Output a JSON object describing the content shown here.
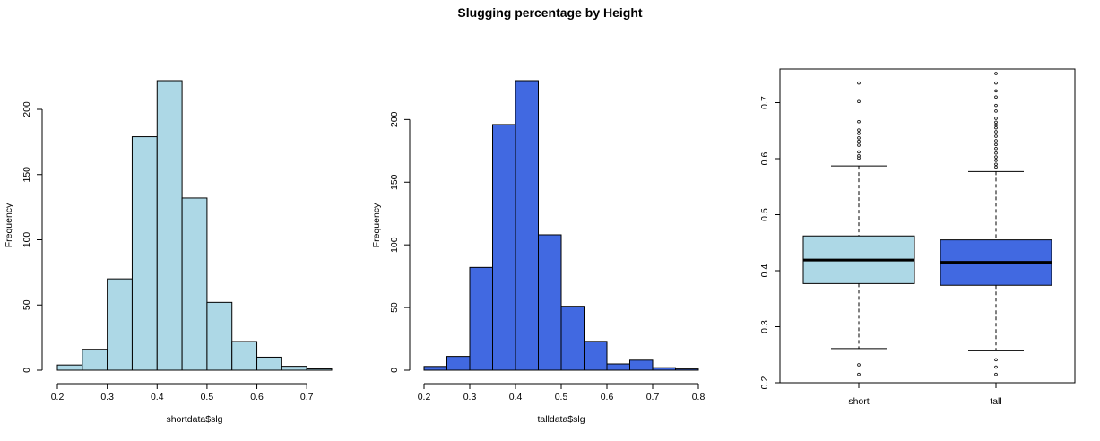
{
  "title": "Slugging percentage by Height",
  "chart_data": [
    {
      "type": "bar",
      "subtype": "histogram",
      "xlabel": "shortdata$slg",
      "ylabel": "Frequency",
      "color": "#add8e6",
      "bin_edges": [
        0.2,
        0.25,
        0.3,
        0.35,
        0.4,
        0.45,
        0.5,
        0.55,
        0.6,
        0.65,
        0.7,
        0.75
      ],
      "values": [
        4,
        16,
        70,
        179,
        222,
        132,
        52,
        22,
        10,
        3,
        1
      ],
      "xlim": [
        0.2,
        0.75
      ],
      "ylim": [
        0,
        222
      ],
      "xticks": [
        0.2,
        0.3,
        0.4,
        0.5,
        0.6,
        0.7
      ],
      "yticks": [
        0,
        50,
        100,
        150,
        200
      ]
    },
    {
      "type": "bar",
      "subtype": "histogram",
      "xlabel": "talldata$slg",
      "ylabel": "Frequency",
      "color": "#4169e1",
      "bin_edges": [
        0.2,
        0.25,
        0.3,
        0.35,
        0.4,
        0.45,
        0.5,
        0.55,
        0.6,
        0.65,
        0.7,
        0.75,
        0.8
      ],
      "values": [
        3,
        11,
        82,
        196,
        231,
        108,
        51,
        23,
        5,
        8,
        2,
        1
      ],
      "xlim": [
        0.2,
        0.8
      ],
      "ylim": [
        0,
        231
      ],
      "xticks": [
        0.2,
        0.3,
        0.4,
        0.5,
        0.6,
        0.7,
        0.8
      ],
      "yticks": [
        0,
        50,
        100,
        150,
        200
      ]
    },
    {
      "type": "boxplot",
      "categories": [
        "short",
        "tall"
      ],
      "ylim": [
        0.2,
        0.76
      ],
      "yticks": [
        0.2,
        0.3,
        0.4,
        0.5,
        0.6,
        0.7
      ],
      "series": [
        {
          "color": "#add8e6",
          "lower_whisker": 0.261,
          "q1": 0.377,
          "median": 0.419,
          "q3": 0.462,
          "upper_whisker": 0.587,
          "outliers": [
            0.215,
            0.232,
            0.601,
            0.605,
            0.612,
            0.624,
            0.631,
            0.637,
            0.645,
            0.651,
            0.666,
            0.702,
            0.735
          ]
        },
        {
          "color": "#4169e1",
          "lower_whisker": 0.257,
          "q1": 0.374,
          "median": 0.415,
          "q3": 0.455,
          "upper_whisker": 0.577,
          "outliers": [
            0.215,
            0.228,
            0.241,
            0.585,
            0.59,
            0.597,
            0.603,
            0.61,
            0.618,
            0.625,
            0.632,
            0.64,
            0.648,
            0.655,
            0.66,
            0.665,
            0.672,
            0.685,
            0.695,
            0.71,
            0.721,
            0.735,
            0.752
          ]
        }
      ]
    }
  ]
}
